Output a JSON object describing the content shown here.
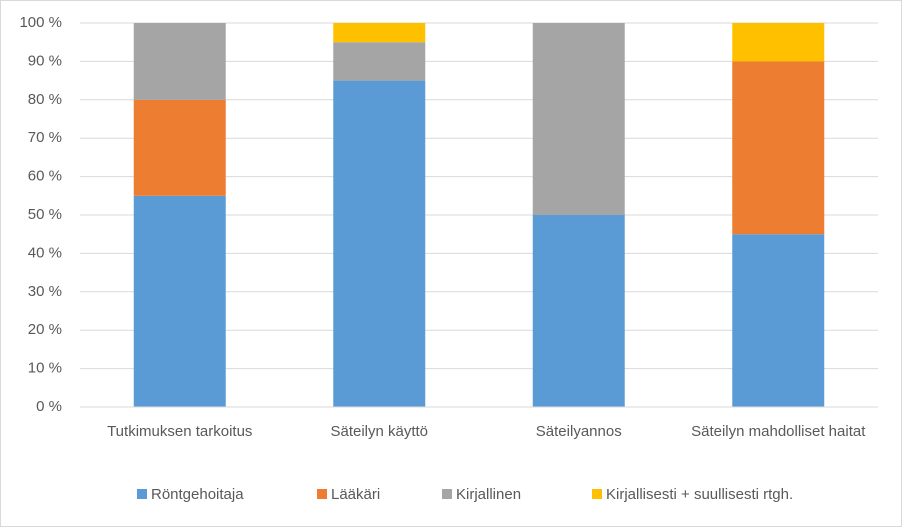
{
  "chart_data": {
    "type": "stacked_bar",
    "categories": [
      "Tutkimuksen tarkoitus",
      "Säteilyn käyttö",
      "Säteilyannos",
      "Säteilyn mahdolliset haitat"
    ],
    "series": [
      {
        "name": "Röntgehoitaja",
        "color": "#5b9bd5",
        "values": [
          55,
          85,
          50,
          45
        ]
      },
      {
        "name": "Lääkäri",
        "color": "#ed7d31",
        "values": [
          25,
          0,
          0,
          45
        ]
      },
      {
        "name": "Kirjallinen",
        "color": "#a5a5a5",
        "values": [
          20,
          10,
          50,
          0
        ]
      },
      {
        "name": "Kirjallisesti + suullisesti rtgh.",
        "color": "#ffc000",
        "values": [
          0,
          5,
          0,
          10
        ]
      }
    ],
    "ylim": [
      0,
      100
    ],
    "yticks": [
      {
        "value": 0,
        "label": "0 %"
      },
      {
        "value": 10,
        "label": "10 %"
      },
      {
        "value": 20,
        "label": "20 %"
      },
      {
        "value": 30,
        "label": "30 %"
      },
      {
        "value": 40,
        "label": "40 %"
      },
      {
        "value": 50,
        "label": "50 %"
      },
      {
        "value": 60,
        "label": "60 %"
      },
      {
        "value": 70,
        "label": "70 %"
      },
      {
        "value": 80,
        "label": "80 %"
      },
      {
        "value": 90,
        "label": "90 %"
      },
      {
        "value": 100,
        "label": "100 %"
      }
    ],
    "grid": true,
    "legend": "bottom"
  }
}
